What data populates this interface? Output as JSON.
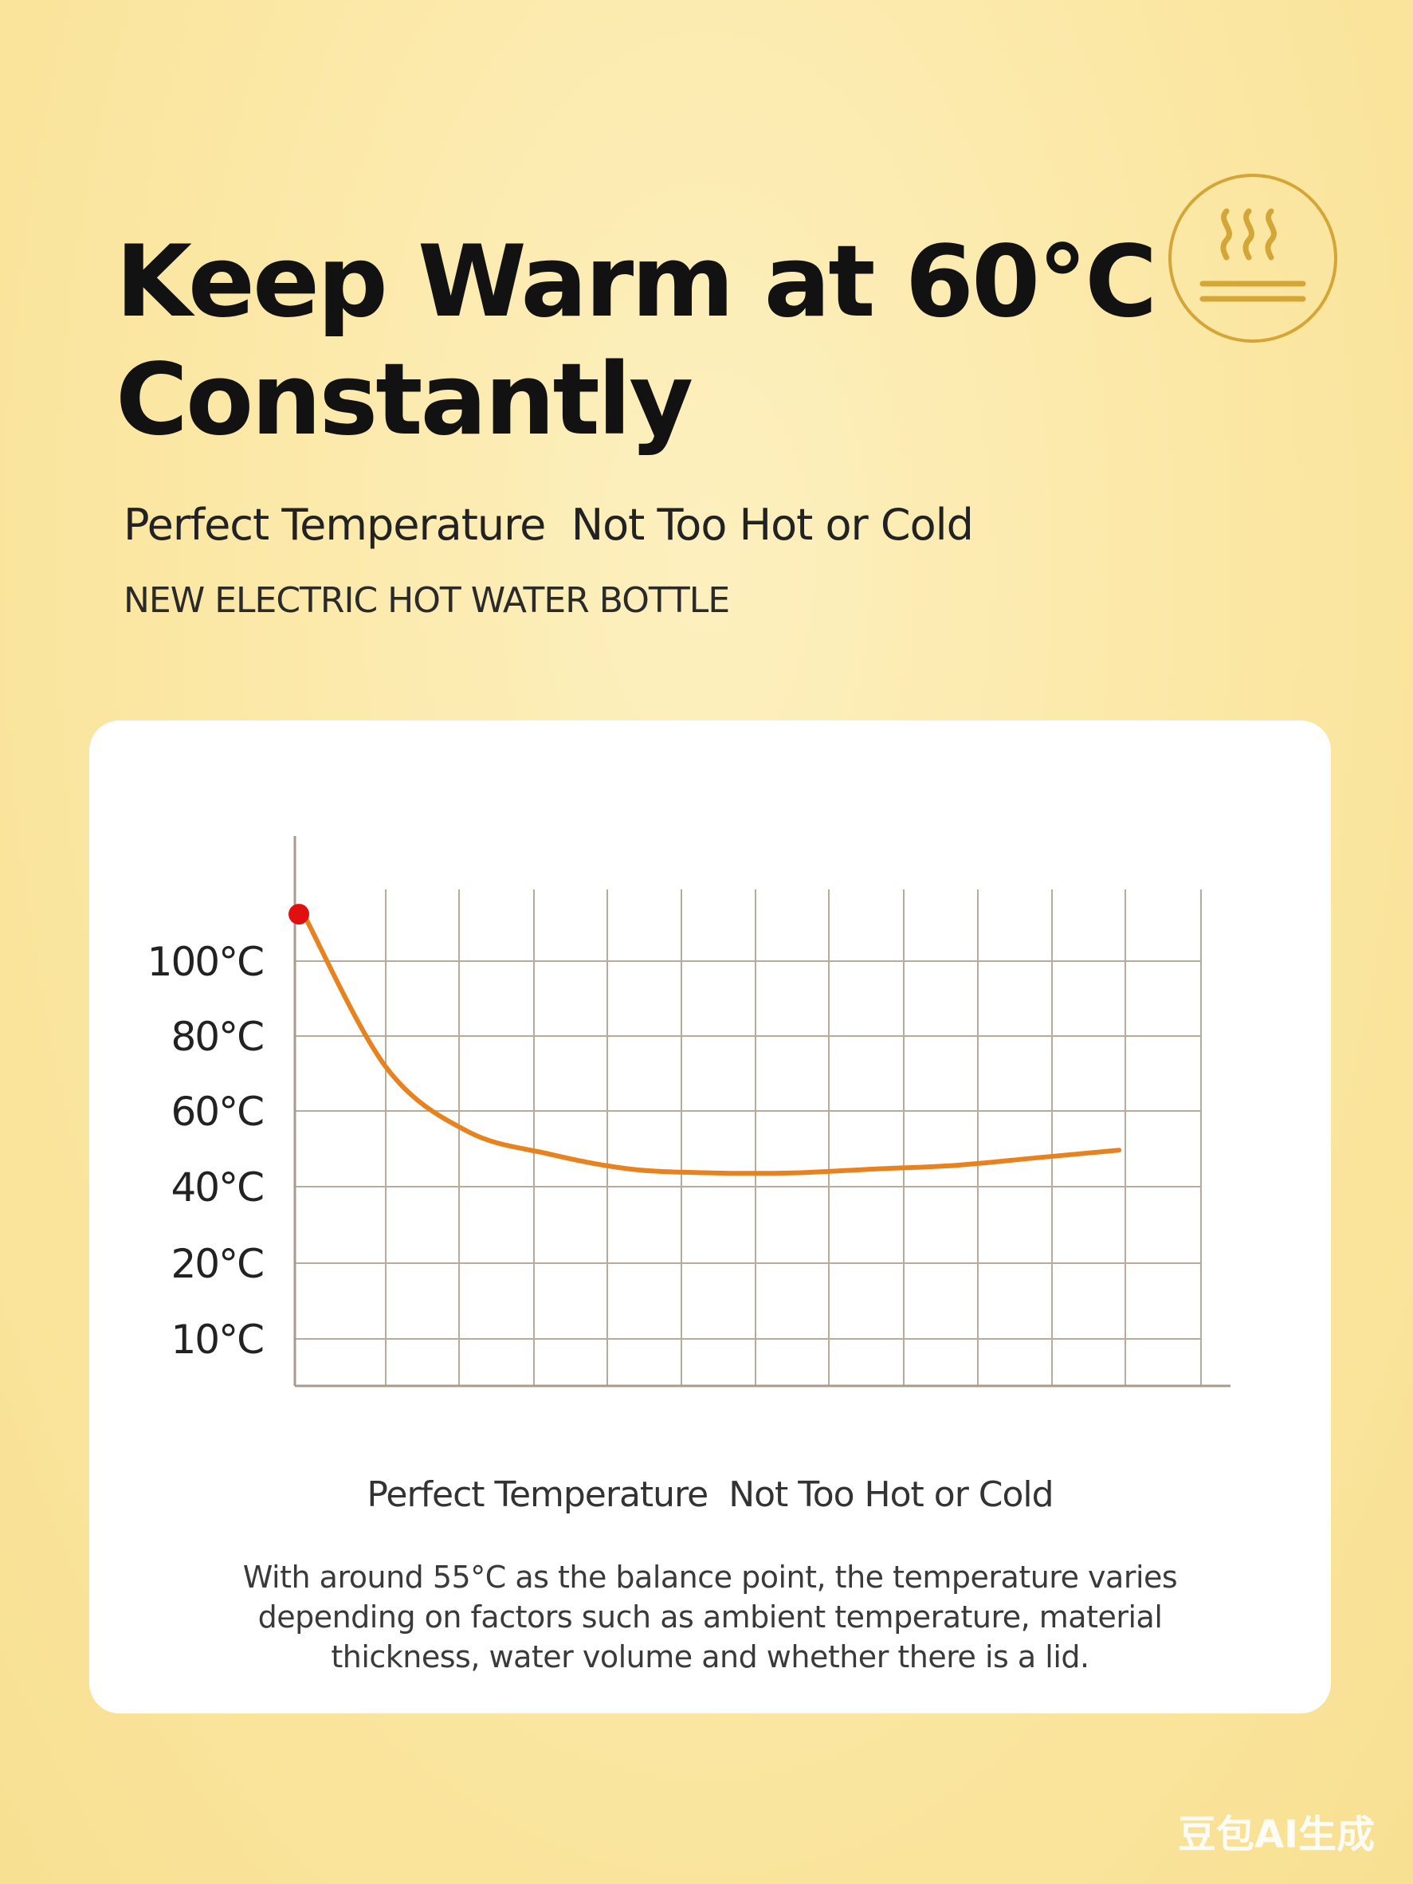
{
  "header": {
    "title_line1": "Keep Warm at 60°C",
    "title_line2": "Constantly",
    "subtitle": "Perfect Temperature  Not Too Hot or Cold",
    "product_tag": "NEW ELECTRIC HOT WATER BOTTLE",
    "badge_icon": "steam-heat-icon"
  },
  "colors": {
    "background": "#fbe7a3",
    "accent_gold": "#d4a537",
    "curve": "#e8821f",
    "start_point": "#e01010",
    "grid": "#b8ab9c"
  },
  "chart_data": {
    "type": "line",
    "title": "",
    "xlabel": "",
    "ylabel": "",
    "y_tick_labels": [
      "100°C",
      "80°C",
      "60°C",
      "40°C",
      "20°C",
      "10°C"
    ],
    "grid": true,
    "series": [
      {
        "values": [
          112,
          72,
          55,
          49,
          45,
          44,
          44,
          45,
          46,
          48,
          50
        ]
      }
    ],
    "start_point_marker": true,
    "caption": "Perfect Temperature  Not Too Hot or Cold",
    "note": "With around 55°C as the balance point, the temperature varies depending on factors such as ambient temperature, material thickness, water volume and whether there is a lid."
  },
  "watermark": "豆包AI生成"
}
